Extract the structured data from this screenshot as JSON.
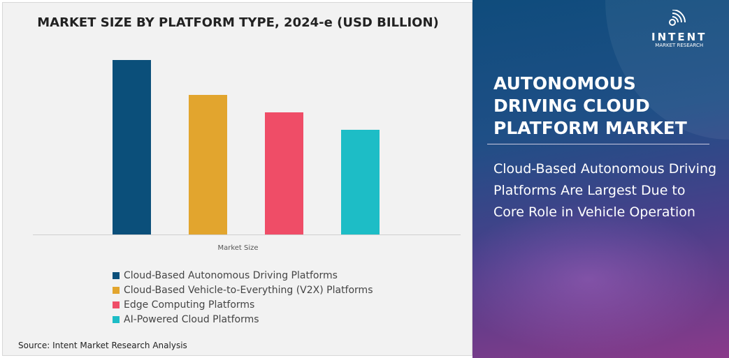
{
  "chart_data": {
    "type": "bar",
    "title": "MARKET SIZE BY PLATFORM TYPE, 2024-e (USD BILLION)",
    "categories": [
      "Market Size"
    ],
    "xlabel": "Market Size",
    "ylabel": "",
    "value_note": "relative bar heights, % of largest",
    "series": [
      {
        "name": "Cloud-Based Autonomous Driving Platforms",
        "values": [
          100
        ],
        "color": "#0b4f7a"
      },
      {
        "name": "Cloud-Based Vehicle-to-Everything (V2X) Platforms",
        "values": [
          80
        ],
        "color": "#e2a52e"
      },
      {
        "name": "Edge Computing Platforms",
        "values": [
          70
        ],
        "color": "#ef4d67"
      },
      {
        "name": "AI-Powered Cloud Platforms",
        "values": [
          60
        ],
        "color": "#1dbdc6"
      }
    ],
    "ylim": [
      0,
      100
    ],
    "grid": false,
    "legend": "bottom"
  },
  "source": "Source: Intent Market Research Analysis",
  "logo": {
    "brand": "INTENT",
    "sub": "MARKET RESEARCH"
  },
  "panel": {
    "heading": "AUTONOMOUS DRIVING CLOUD PLATFORM MARKET",
    "subtitle": "Cloud-Based Autonomous Driving Platforms Are Largest Due to Core Role in Vehicle Operation"
  }
}
